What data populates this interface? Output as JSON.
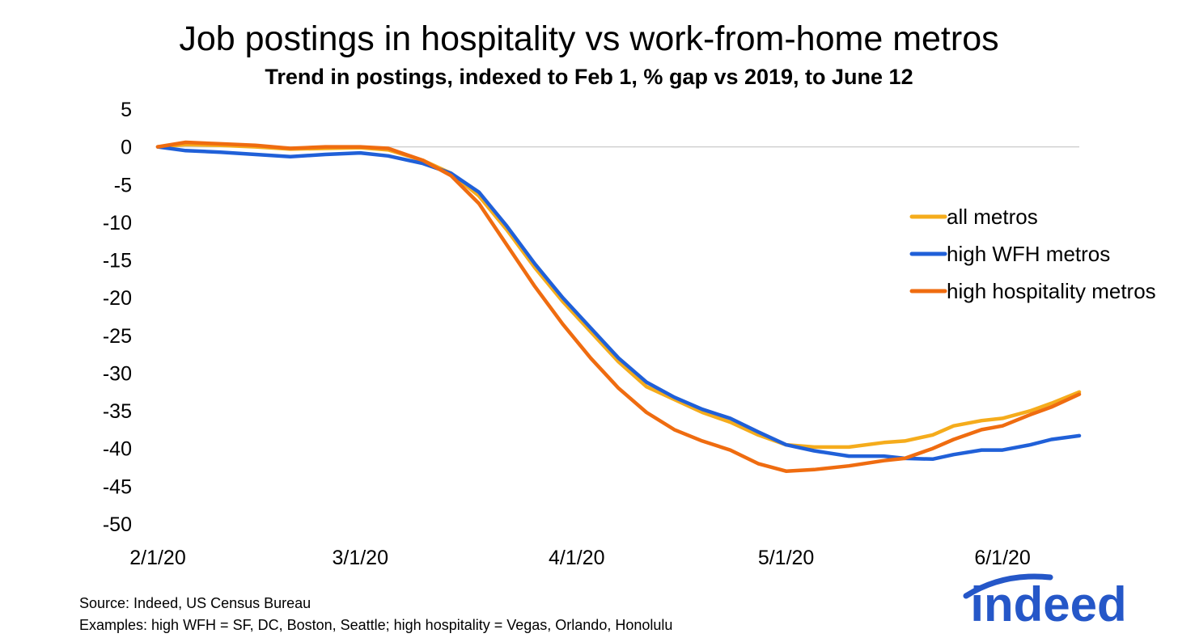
{
  "chart_data": {
    "type": "line",
    "title": "Job postings in hospitality vs work-from-home metros",
    "subtitle": "Trend in postings, indexed to Feb 1, % gap vs 2019, to June 12",
    "xlabel": "",
    "ylabel": "",
    "x_range": [
      "2020-02-01",
      "2020-06-12"
    ],
    "x_ticks": [
      {
        "date": "2020-02-01",
        "label": "2/1/20"
      },
      {
        "date": "2020-03-01",
        "label": "3/1/20"
      },
      {
        "date": "2020-04-01",
        "label": "4/1/20"
      },
      {
        "date": "2020-05-01",
        "label": "5/1/20"
      },
      {
        "date": "2020-06-01",
        "label": "6/1/20"
      }
    ],
    "ylim": [
      -50,
      5
    ],
    "y_ticks": [
      5,
      0,
      -5,
      -10,
      -15,
      -20,
      -25,
      -30,
      -35,
      -40,
      -45,
      -50
    ],
    "zero_line": true,
    "grid": false,
    "legend_position": "right",
    "series": [
      {
        "name": "all metros",
        "color": "#f5ac1c",
        "points": [
          [
            "2020-02-01",
            0
          ],
          [
            "2020-02-05",
            0.3
          ],
          [
            "2020-02-10",
            0.2
          ],
          [
            "2020-02-15",
            0
          ],
          [
            "2020-02-20",
            -0.3
          ],
          [
            "2020-02-25",
            -0.2
          ],
          [
            "2020-03-01",
            -0.1
          ],
          [
            "2020-03-05",
            -0.4
          ],
          [
            "2020-03-10",
            -1.8
          ],
          [
            "2020-03-14",
            -3.5
          ],
          [
            "2020-03-18",
            -6.5
          ],
          [
            "2020-03-22",
            -11
          ],
          [
            "2020-03-26",
            -16
          ],
          [
            "2020-03-30",
            -20.5
          ],
          [
            "2020-04-03",
            -24.5
          ],
          [
            "2020-04-07",
            -28.5
          ],
          [
            "2020-04-11",
            -31.8
          ],
          [
            "2020-04-15",
            -33.5
          ],
          [
            "2020-04-19",
            -35.2
          ],
          [
            "2020-04-23",
            -36.5
          ],
          [
            "2020-04-27",
            -38.2
          ],
          [
            "2020-05-01",
            -39.5
          ],
          [
            "2020-05-05",
            -39.8
          ],
          [
            "2020-05-10",
            -39.8
          ],
          [
            "2020-05-15",
            -39.2
          ],
          [
            "2020-05-18",
            -39.0
          ],
          [
            "2020-05-22",
            -38.2
          ],
          [
            "2020-05-25",
            -37.0
          ],
          [
            "2020-05-29",
            -36.3
          ],
          [
            "2020-06-01",
            -36.0
          ],
          [
            "2020-06-05",
            -35.0
          ],
          [
            "2020-06-08",
            -34.0
          ],
          [
            "2020-06-12",
            -32.5
          ]
        ]
      },
      {
        "name": "high WFH metros",
        "color": "#2060d8",
        "points": [
          [
            "2020-02-01",
            0
          ],
          [
            "2020-02-05",
            -0.5
          ],
          [
            "2020-02-10",
            -0.7
          ],
          [
            "2020-02-15",
            -1.0
          ],
          [
            "2020-02-20",
            -1.3
          ],
          [
            "2020-02-25",
            -1.0
          ],
          [
            "2020-03-01",
            -0.8
          ],
          [
            "2020-03-05",
            -1.2
          ],
          [
            "2020-03-10",
            -2.2
          ],
          [
            "2020-03-14",
            -3.5
          ],
          [
            "2020-03-18",
            -6.0
          ],
          [
            "2020-03-22",
            -10.5
          ],
          [
            "2020-03-26",
            -15.5
          ],
          [
            "2020-03-30",
            -20.0
          ],
          [
            "2020-04-03",
            -24.0
          ],
          [
            "2020-04-07",
            -28.0
          ],
          [
            "2020-04-11",
            -31.2
          ],
          [
            "2020-04-15",
            -33.2
          ],
          [
            "2020-04-19",
            -34.8
          ],
          [
            "2020-04-23",
            -36.0
          ],
          [
            "2020-04-27",
            -37.8
          ],
          [
            "2020-05-01",
            -39.5
          ],
          [
            "2020-05-05",
            -40.3
          ],
          [
            "2020-05-10",
            -41.0
          ],
          [
            "2020-05-15",
            -41.0
          ],
          [
            "2020-05-18",
            -41.3
          ],
          [
            "2020-05-22",
            -41.4
          ],
          [
            "2020-05-25",
            -40.8
          ],
          [
            "2020-05-29",
            -40.2
          ],
          [
            "2020-06-01",
            -40.2
          ],
          [
            "2020-06-05",
            -39.5
          ],
          [
            "2020-06-08",
            -38.8
          ],
          [
            "2020-06-12",
            -38.3
          ]
        ]
      },
      {
        "name": "high hospitality metros",
        "color": "#ef6c10",
        "points": [
          [
            "2020-02-01",
            0
          ],
          [
            "2020-02-05",
            0.6
          ],
          [
            "2020-02-10",
            0.4
          ],
          [
            "2020-02-15",
            0.2
          ],
          [
            "2020-02-20",
            -0.2
          ],
          [
            "2020-02-25",
            0
          ],
          [
            "2020-03-01",
            0
          ],
          [
            "2020-03-05",
            -0.2
          ],
          [
            "2020-03-10",
            -1.8
          ],
          [
            "2020-03-14",
            -3.8
          ],
          [
            "2020-03-18",
            -7.5
          ],
          [
            "2020-03-22",
            -13.0
          ],
          [
            "2020-03-26",
            -18.5
          ],
          [
            "2020-03-30",
            -23.5
          ],
          [
            "2020-04-03",
            -28.0
          ],
          [
            "2020-04-07",
            -32.0
          ],
          [
            "2020-04-11",
            -35.2
          ],
          [
            "2020-04-15",
            -37.5
          ],
          [
            "2020-04-19",
            -39.0
          ],
          [
            "2020-04-23",
            -40.2
          ],
          [
            "2020-04-27",
            -42.0
          ],
          [
            "2020-05-01",
            -43.0
          ],
          [
            "2020-05-05",
            -42.8
          ],
          [
            "2020-05-10",
            -42.3
          ],
          [
            "2020-05-15",
            -41.6
          ],
          [
            "2020-05-18",
            -41.3
          ],
          [
            "2020-05-22",
            -40.0
          ],
          [
            "2020-05-25",
            -38.8
          ],
          [
            "2020-05-29",
            -37.5
          ],
          [
            "2020-06-01",
            -37.0
          ],
          [
            "2020-06-05",
            -35.5
          ],
          [
            "2020-06-08",
            -34.5
          ],
          [
            "2020-06-12",
            -32.8
          ]
        ]
      }
    ]
  },
  "source": {
    "line1": "Source: Indeed, US Census Bureau",
    "line2": "Examples: high WFH = SF, DC, Boston, Seattle; high hospitality = Vegas, Orlando, Honolulu"
  },
  "logo": {
    "text": "indeed",
    "color": "#2557c8"
  }
}
